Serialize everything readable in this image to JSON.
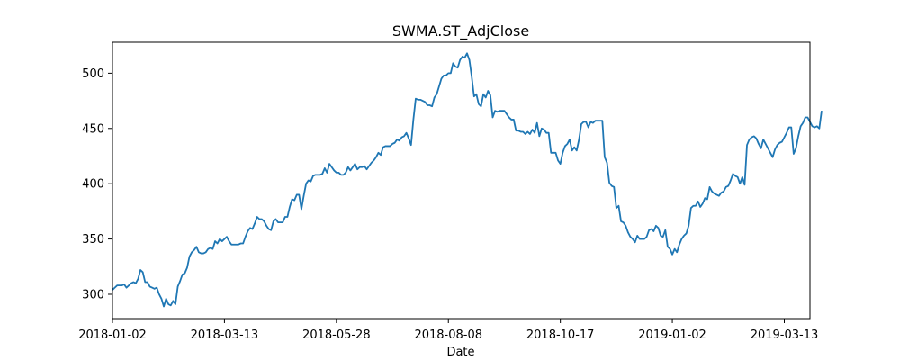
{
  "chart_data": {
    "type": "line",
    "title": "SWMA.ST_AdjClose",
    "xlabel": "Date",
    "ylabel": "",
    "x_tick_labels": [
      "2018-01-02",
      "2018-03-13",
      "2018-05-28",
      "2018-08-08",
      "2018-10-17",
      "2019-01-02",
      "2019-03-13"
    ],
    "x_tick_positions": [
      0,
      48,
      96,
      144,
      192,
      240,
      288
    ],
    "y_ticks": [
      300,
      350,
      400,
      450,
      500
    ],
    "xlim": [
      0,
      299
    ],
    "ylim": [
      278,
      528
    ],
    "grid": false,
    "legend": "none",
    "line_color": "#1f77b4",
    "series": [
      {
        "values": [
          304,
          306,
          308,
          308,
          308,
          309,
          306,
          308,
          310,
          311,
          310,
          314,
          322,
          320,
          311,
          311,
          307,
          306,
          305,
          306,
          300,
          296,
          289,
          296,
          291,
          290,
          294,
          291,
          307,
          312,
          318,
          319,
          324,
          334,
          338,
          340,
          343,
          338,
          337,
          337,
          338,
          341,
          342,
          341,
          348,
          346,
          350,
          348,
          350,
          352,
          348,
          345,
          345,
          345,
          345,
          346,
          346,
          352,
          357,
          360,
          359,
          364,
          370,
          368,
          368,
          366,
          362,
          359,
          358,
          366,
          368,
          365,
          365,
          365,
          370,
          370,
          379,
          386,
          385,
          390,
          390,
          377,
          389,
          400,
          403,
          402,
          407,
          408,
          408,
          408,
          409,
          414,
          410,
          418,
          415,
          412,
          410,
          410,
          408,
          408,
          410,
          415,
          412,
          415,
          418,
          413,
          415,
          415,
          416,
          413,
          416,
          419,
          421,
          424,
          428,
          426,
          433,
          434,
          434,
          434,
          436,
          437,
          440,
          439,
          442,
          443,
          446,
          441,
          435,
          458,
          477,
          476,
          476,
          475,
          474,
          471,
          471,
          470,
          478,
          481,
          488,
          495,
          498,
          498,
          500,
          500,
          509,
          506,
          505,
          512,
          515,
          514,
          518,
          512,
          497,
          479,
          481,
          472,
          470,
          481,
          478,
          484,
          480,
          460,
          466,
          465,
          466,
          466,
          466,
          463,
          460,
          458,
          458,
          448,
          448,
          447,
          447,
          445,
          447,
          445,
          449,
          446,
          455,
          443,
          450,
          449,
          446,
          446,
          428,
          428,
          428,
          421,
          418,
          428,
          434,
          436,
          440,
          430,
          433,
          430,
          440,
          454,
          456,
          456,
          451,
          456,
          455,
          457,
          457,
          457,
          457,
          424,
          419,
          401,
          398,
          397,
          378,
          380,
          366,
          365,
          362,
          356,
          352,
          350,
          347,
          353,
          350,
          350,
          350,
          352,
          358,
          359,
          357,
          362,
          360,
          353,
          352,
          358,
          343,
          341,
          336,
          341,
          338,
          345,
          350,
          353,
          355,
          362,
          378,
          380,
          380,
          384,
          379,
          382,
          387,
          386,
          397,
          393,
          391,
          390,
          389,
          392,
          393,
          397,
          398,
          403,
          409,
          407,
          406,
          400,
          406,
          399,
          435,
          440,
          442,
          443,
          441,
          436,
          432,
          440,
          436,
          432,
          428,
          424,
          431,
          435,
          437,
          438,
          442,
          446,
          451,
          451,
          427,
          432,
          443,
          452,
          455,
          460,
          460,
          456,
          452,
          451,
          452,
          450,
          466
        ]
      }
    ]
  }
}
